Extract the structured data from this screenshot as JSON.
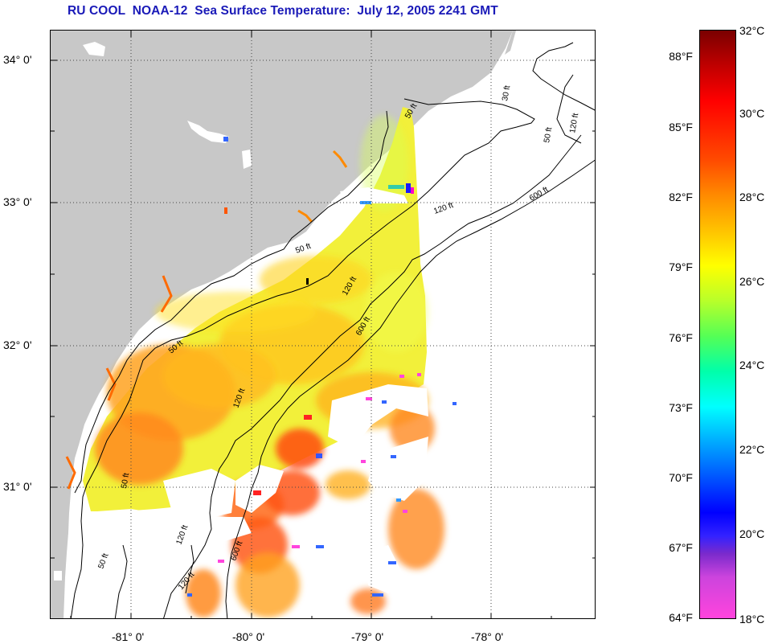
{
  "title": "RU COOL  NOAA-12  Sea Surface Temperature:  July 12, 2005 2241 GMT",
  "map": {
    "lat_labels": [
      "34° 0'",
      "33° 0'",
      "32° 0'",
      "31° 0'"
    ],
    "lon_labels": [
      "-81° 0'",
      "-80° 0'",
      "-79° 0'",
      "-78° 0'"
    ],
    "contour_labels": [
      "50 ft",
      "120 ft",
      "600 ft",
      "30 ft",
      "120 ft",
      "50 ft",
      "50 ft",
      "120 ft",
      "600 ft",
      "50 ft",
      "120 ft",
      "50 ft",
      "120 ft",
      "600 ft",
      "120 ft",
      "50 ft"
    ],
    "colors": {
      "land": "#c8c8c8",
      "cloud": "#ffffff",
      "contour": "#000000"
    }
  },
  "colorbar": {
    "fahrenheit_labels": [
      "88°F",
      "85°F",
      "82°F",
      "79°F",
      "76°F",
      "73°F",
      "70°F",
      "67°F",
      "64°F"
    ],
    "celsius_labels": [
      "32°C",
      "30°C",
      "28°C",
      "26°C",
      "24°C",
      "22°C",
      "20°C",
      "18°C"
    ],
    "colors": {
      "max": "#7a0000",
      "mid": "#ffff00",
      "min": "#ff44dd"
    }
  }
}
